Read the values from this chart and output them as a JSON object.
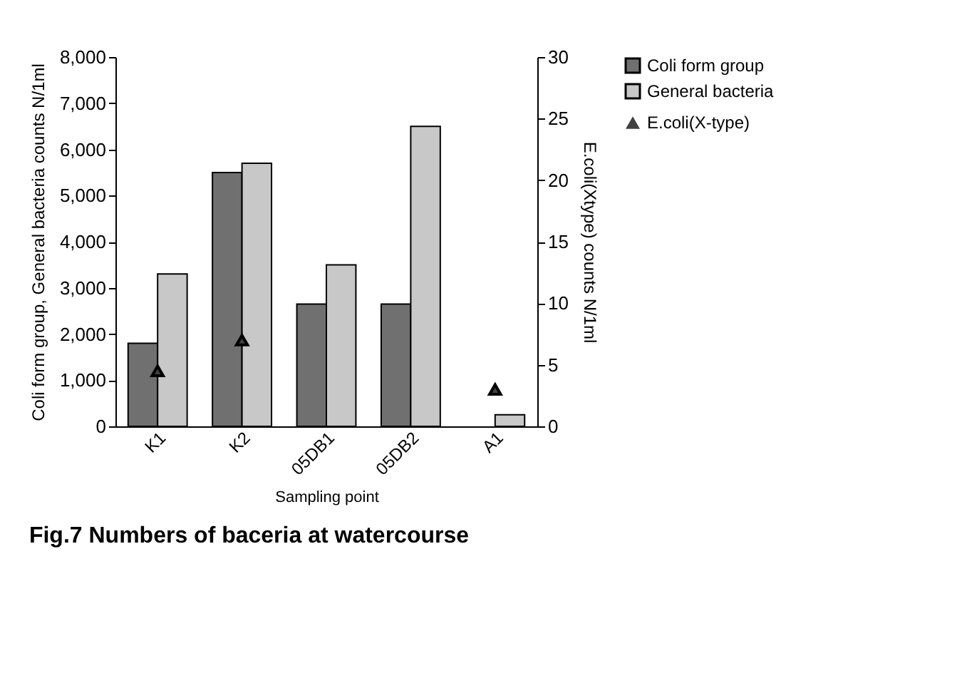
{
  "chart_data": {
    "type": "bar",
    "title": "Fig.7 Numbers of baceria at watercourse",
    "xlabel": "Sampling point",
    "ylabel": "Coli form group, General bacteria counts  N/1ml",
    "y2label": "E.coli(Xtype) counts  N/1ml",
    "categories": [
      "K1",
      "K2",
      "05DB1",
      "05DB2",
      "A1"
    ],
    "series": [
      {
        "name": "Coli form group",
        "color": "#707070",
        "values": [
          1800,
          5500,
          2650,
          2650,
          null
        ]
      },
      {
        "name": "General bacteria",
        "color": "#c8c8c8",
        "values": [
          3300,
          5700,
          3500,
          6500,
          250
        ]
      },
      {
        "name": "E.coli(X-type)",
        "color": "#404040",
        "type": "scatter",
        "axis": "y2",
        "marker": "triangle",
        "values": [
          4.5,
          7,
          null,
          null,
          3
        ]
      }
    ],
    "ylim": [
      0,
      8000
    ],
    "yticks": [
      0,
      {
        "value": 1000,
        "label": "1,000"
      },
      {
        "value": 2000,
        "label": "2,000"
      },
      {
        "value": 3000,
        "label": "3,000"
      },
      {
        "value": 4000,
        "label": "4,000"
      },
      {
        "value": 5000,
        "label": "5,000"
      },
      {
        "value": 6000,
        "label": "6,000"
      },
      {
        "value": 7000,
        "label": "7,000"
      },
      {
        "value": 8000,
        "label": "8,000"
      }
    ],
    "y2lim": [
      0,
      30
    ],
    "y2ticks": [
      0,
      5,
      10,
      15,
      20,
      25,
      30
    ],
    "grid": false,
    "legend": "right"
  }
}
